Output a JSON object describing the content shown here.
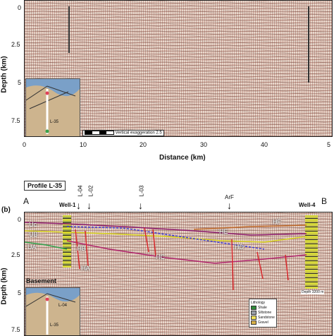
{
  "top_panel": {
    "x_ticks": [
      "0",
      "10",
      "20",
      "30",
      "40",
      "5"
    ],
    "y_ticks": [
      "0",
      "2.5",
      "5",
      "7.5"
    ],
    "x_label": "Distance (km)",
    "y_label": "Depth (km)",
    "scale_note": "Vertical exaggeration 2.5",
    "map_label": "L-35"
  },
  "bottom_panel": {
    "profile_title": "Profile L-35",
    "panel_letter": "(b)",
    "endpoint_left": "A",
    "endpoint_right": "B",
    "well_left": "Well-1",
    "well_right": "Well-4",
    "markers": [
      "L-04",
      "L-02",
      "L-03",
      "ArF"
    ],
    "y_ticks": [
      "0",
      "2.5",
      "5",
      "7.5"
    ],
    "y_label": "Depth (km)",
    "seq_labels": [
      "Uc",
      "UB",
      "UA",
      "HB",
      "HA",
      "HC",
      "HD",
      "HE",
      "HF"
    ],
    "basement_label": "Basement",
    "map_label": "L-35",
    "map_label_2": "L-04",
    "depth_note": "Depth 3200 m",
    "legend": {
      "title": "Lithology",
      "items": [
        {
          "label": "Shale",
          "color": "#2f8a3a"
        },
        {
          "label": "Siltstone",
          "color": "#9aa0a8"
        },
        {
          "label": "Sandstone",
          "color": "#f1e35a"
        },
        {
          "label": "Gravel",
          "color": "#d9b24a"
        }
      ]
    }
  }
}
